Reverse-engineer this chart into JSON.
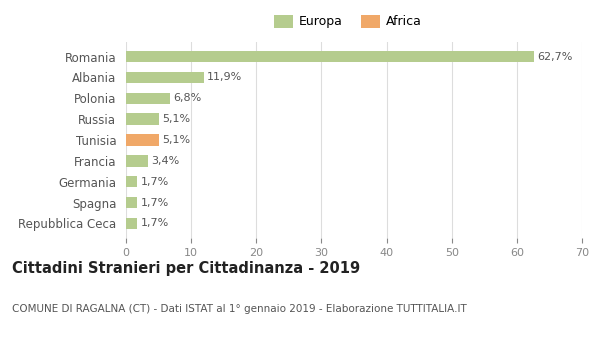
{
  "categories": [
    "Romania",
    "Albania",
    "Polonia",
    "Russia",
    "Tunisia",
    "Francia",
    "Germania",
    "Spagna",
    "Repubblica Ceca"
  ],
  "values": [
    62.7,
    11.9,
    6.8,
    5.1,
    5.1,
    3.4,
    1.7,
    1.7,
    1.7
  ],
  "labels": [
    "62,7%",
    "11,9%",
    "6,8%",
    "5,1%",
    "5,1%",
    "3,4%",
    "1,7%",
    "1,7%",
    "1,7%"
  ],
  "colors": [
    "#b5cc8e",
    "#b5cc8e",
    "#b5cc8e",
    "#b5cc8e",
    "#f0a868",
    "#b5cc8e",
    "#b5cc8e",
    "#b5cc8e",
    "#b5cc8e"
  ],
  "legend_items": [
    {
      "label": "Europa",
      "color": "#b5cc8e"
    },
    {
      "label": "Africa",
      "color": "#f0a868"
    }
  ],
  "xlim": [
    0,
    70
  ],
  "xticks": [
    0,
    10,
    20,
    30,
    40,
    50,
    60,
    70
  ],
  "title": "Cittadini Stranieri per Cittadinanza - 2019",
  "subtitle": "COMUNE DI RAGALNA (CT) - Dati ISTAT al 1° gennaio 2019 - Elaborazione TUTTITALIA.IT",
  "background_color": "#ffffff",
  "bar_height": 0.55,
  "grid_color": "#dddddd",
  "label_color": "#555555",
  "tick_label_color": "#888888",
  "title_fontsize": 10.5,
  "subtitle_fontsize": 7.5,
  "bar_label_fontsize": 8,
  "ytick_fontsize": 8.5,
  "xtick_fontsize": 8
}
